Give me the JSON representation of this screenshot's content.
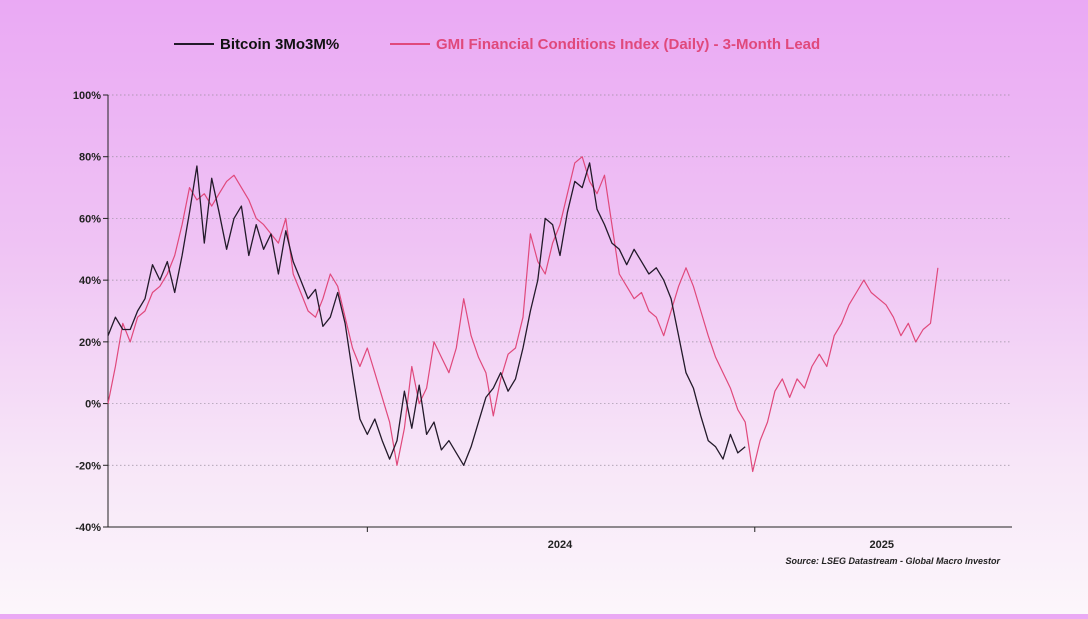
{
  "chart_data": {
    "type": "line",
    "title": "",
    "xlabel": "",
    "ylabel": "",
    "ylim": [
      -40,
      100
    ],
    "yticks": [
      "100%",
      "80%",
      "60%",
      "40%",
      "20%",
      "0%",
      "-20%",
      "-40%"
    ],
    "ytick_values": [
      100,
      80,
      60,
      40,
      20,
      0,
      -20,
      -40
    ],
    "xticks": [
      "2024",
      "2025"
    ],
    "xlim": [
      "2023-05-01",
      "2025-09-01"
    ],
    "grid": "horizontal dotted",
    "legend_position": "top-center",
    "source": "Source: LSEG Datastream - Global Macro Investor",
    "series": [
      {
        "name": "Bitcoin 3Mo3M%",
        "color": "#231a2a",
        "points": [
          [
            "2023-05-01",
            22
          ],
          [
            "2023-05-08",
            28
          ],
          [
            "2023-05-15",
            24
          ],
          [
            "2023-05-22",
            24
          ],
          [
            "2023-05-29",
            30
          ],
          [
            "2023-06-05",
            34
          ],
          [
            "2023-06-12",
            45
          ],
          [
            "2023-06-19",
            40
          ],
          [
            "2023-06-26",
            46
          ],
          [
            "2023-07-03",
            36
          ],
          [
            "2023-07-10",
            48
          ],
          [
            "2023-07-17",
            62
          ],
          [
            "2023-07-24",
            77
          ],
          [
            "2023-07-31",
            52
          ],
          [
            "2023-08-07",
            73
          ],
          [
            "2023-08-14",
            62
          ],
          [
            "2023-08-21",
            50
          ],
          [
            "2023-08-28",
            60
          ],
          [
            "2023-09-04",
            64
          ],
          [
            "2023-09-11",
            48
          ],
          [
            "2023-09-18",
            58
          ],
          [
            "2023-09-25",
            50
          ],
          [
            "2023-10-02",
            55
          ],
          [
            "2023-10-09",
            42
          ],
          [
            "2023-10-16",
            56
          ],
          [
            "2023-10-23",
            46
          ],
          [
            "2023-10-30",
            40
          ],
          [
            "2023-11-06",
            34
          ],
          [
            "2023-11-13",
            37
          ],
          [
            "2023-11-20",
            25
          ],
          [
            "2023-11-27",
            28
          ],
          [
            "2023-12-04",
            36
          ],
          [
            "2023-12-11",
            26
          ],
          [
            "2023-12-18",
            10
          ],
          [
            "2023-12-25",
            -5
          ],
          [
            "2024-01-01",
            -10
          ],
          [
            "2024-01-08",
            -5
          ],
          [
            "2024-01-15",
            -12
          ],
          [
            "2024-01-22",
            -18
          ],
          [
            "2024-01-29",
            -12
          ],
          [
            "2024-02-05",
            4
          ],
          [
            "2024-02-12",
            -8
          ],
          [
            "2024-02-19",
            6
          ],
          [
            "2024-02-26",
            -10
          ],
          [
            "2024-03-04",
            -6
          ],
          [
            "2024-03-11",
            -15
          ],
          [
            "2024-03-18",
            -12
          ],
          [
            "2024-03-25",
            -16
          ],
          [
            "2024-04-01",
            -20
          ],
          [
            "2024-04-08",
            -14
          ],
          [
            "2024-04-15",
            -6
          ],
          [
            "2024-04-22",
            2
          ],
          [
            "2024-04-29",
            5
          ],
          [
            "2024-05-06",
            10
          ],
          [
            "2024-05-13",
            4
          ],
          [
            "2024-05-20",
            8
          ],
          [
            "2024-05-27",
            18
          ],
          [
            "2024-06-03",
            30
          ],
          [
            "2024-06-10",
            40
          ],
          [
            "2024-06-17",
            60
          ],
          [
            "2024-06-24",
            58
          ],
          [
            "2024-07-01",
            48
          ],
          [
            "2024-07-08",
            62
          ],
          [
            "2024-07-15",
            72
          ],
          [
            "2024-07-22",
            70
          ],
          [
            "2024-07-29",
            78
          ],
          [
            "2024-08-05",
            63
          ],
          [
            "2024-08-12",
            58
          ],
          [
            "2024-08-19",
            52
          ],
          [
            "2024-08-26",
            50
          ],
          [
            "2024-09-02",
            45
          ],
          [
            "2024-09-09",
            50
          ],
          [
            "2024-09-16",
            46
          ],
          [
            "2024-09-23",
            42
          ],
          [
            "2024-09-30",
            44
          ],
          [
            "2024-10-07",
            40
          ],
          [
            "2024-10-14",
            34
          ],
          [
            "2024-10-21",
            22
          ],
          [
            "2024-10-28",
            10
          ],
          [
            "2024-11-04",
            5
          ],
          [
            "2024-11-11",
            -4
          ],
          [
            "2024-11-18",
            -12
          ],
          [
            "2024-11-25",
            -14
          ],
          [
            "2024-12-02",
            -18
          ],
          [
            "2024-12-09",
            -10
          ],
          [
            "2024-12-16",
            -16
          ],
          [
            "2024-12-23",
            -14
          ]
        ]
      },
      {
        "name": "GMI Financial Conditions Index (Daily) - 3-Month Lead",
        "color": "#e0497c",
        "points": [
          [
            "2023-05-01",
            0
          ],
          [
            "2023-05-08",
            12
          ],
          [
            "2023-05-15",
            26
          ],
          [
            "2023-05-22",
            20
          ],
          [
            "2023-05-29",
            28
          ],
          [
            "2023-06-05",
            30
          ],
          [
            "2023-06-12",
            36
          ],
          [
            "2023-06-19",
            38
          ],
          [
            "2023-06-26",
            42
          ],
          [
            "2023-07-03",
            48
          ],
          [
            "2023-07-10",
            58
          ],
          [
            "2023-07-17",
            70
          ],
          [
            "2023-07-24",
            66
          ],
          [
            "2023-07-31",
            68
          ],
          [
            "2023-08-07",
            64
          ],
          [
            "2023-08-14",
            68
          ],
          [
            "2023-08-21",
            72
          ],
          [
            "2023-08-28",
            74
          ],
          [
            "2023-09-04",
            70
          ],
          [
            "2023-09-11",
            66
          ],
          [
            "2023-09-18",
            60
          ],
          [
            "2023-09-25",
            58
          ],
          [
            "2023-10-02",
            55
          ],
          [
            "2023-10-09",
            52
          ],
          [
            "2023-10-16",
            60
          ],
          [
            "2023-10-23",
            42
          ],
          [
            "2023-10-30",
            36
          ],
          [
            "2023-11-06",
            30
          ],
          [
            "2023-11-13",
            28
          ],
          [
            "2023-11-20",
            34
          ],
          [
            "2023-11-27",
            42
          ],
          [
            "2023-12-04",
            38
          ],
          [
            "2023-12-11",
            28
          ],
          [
            "2023-12-18",
            18
          ],
          [
            "2023-12-25",
            12
          ],
          [
            "2024-01-01",
            18
          ],
          [
            "2024-01-08",
            10
          ],
          [
            "2024-01-15",
            2
          ],
          [
            "2024-01-22",
            -6
          ],
          [
            "2024-01-29",
            -20
          ],
          [
            "2024-02-05",
            -8
          ],
          [
            "2024-02-12",
            12
          ],
          [
            "2024-02-19",
            0
          ],
          [
            "2024-02-26",
            5
          ],
          [
            "2024-03-04",
            20
          ],
          [
            "2024-03-11",
            15
          ],
          [
            "2024-03-18",
            10
          ],
          [
            "2024-03-25",
            18
          ],
          [
            "2024-04-01",
            34
          ],
          [
            "2024-04-08",
            22
          ],
          [
            "2024-04-15",
            15
          ],
          [
            "2024-04-22",
            10
          ],
          [
            "2024-04-29",
            -4
          ],
          [
            "2024-05-06",
            8
          ],
          [
            "2024-05-13",
            16
          ],
          [
            "2024-05-20",
            18
          ],
          [
            "2024-05-27",
            28
          ],
          [
            "2024-06-03",
            55
          ],
          [
            "2024-06-10",
            46
          ],
          [
            "2024-06-17",
            42
          ],
          [
            "2024-06-24",
            52
          ],
          [
            "2024-07-01",
            58
          ],
          [
            "2024-07-08",
            68
          ],
          [
            "2024-07-15",
            78
          ],
          [
            "2024-07-22",
            80
          ],
          [
            "2024-07-29",
            72
          ],
          [
            "2024-08-05",
            68
          ],
          [
            "2024-08-12",
            74
          ],
          [
            "2024-08-19",
            58
          ],
          [
            "2024-08-26",
            42
          ],
          [
            "2024-09-02",
            38
          ],
          [
            "2024-09-09",
            34
          ],
          [
            "2024-09-16",
            36
          ],
          [
            "2024-09-23",
            30
          ],
          [
            "2024-09-30",
            28
          ],
          [
            "2024-10-07",
            22
          ],
          [
            "2024-10-14",
            30
          ],
          [
            "2024-10-21",
            38
          ],
          [
            "2024-10-28",
            44
          ],
          [
            "2024-11-04",
            38
          ],
          [
            "2024-11-11",
            30
          ],
          [
            "2024-11-18",
            22
          ],
          [
            "2024-11-25",
            15
          ],
          [
            "2024-12-02",
            10
          ],
          [
            "2024-12-09",
            5
          ],
          [
            "2024-12-16",
            -2
          ],
          [
            "2024-12-23",
            -6
          ],
          [
            "2024-12-30",
            -22
          ],
          [
            "2025-01-06",
            -12
          ],
          [
            "2025-01-13",
            -6
          ],
          [
            "2025-01-20",
            4
          ],
          [
            "2025-01-27",
            8
          ],
          [
            "2025-02-03",
            2
          ],
          [
            "2025-02-10",
            8
          ],
          [
            "2025-02-17",
            5
          ],
          [
            "2025-02-24",
            12
          ],
          [
            "2025-03-03",
            16
          ],
          [
            "2025-03-10",
            12
          ],
          [
            "2025-03-17",
            22
          ],
          [
            "2025-03-24",
            26
          ],
          [
            "2025-03-31",
            32
          ],
          [
            "2025-04-07",
            36
          ],
          [
            "2025-04-14",
            40
          ],
          [
            "2025-04-21",
            36
          ],
          [
            "2025-04-28",
            34
          ],
          [
            "2025-05-05",
            32
          ],
          [
            "2025-05-12",
            28
          ],
          [
            "2025-05-19",
            22
          ],
          [
            "2025-05-26",
            26
          ],
          [
            "2025-06-02",
            20
          ],
          [
            "2025-06-09",
            24
          ],
          [
            "2025-06-16",
            26
          ],
          [
            "2025-06-23",
            44
          ]
        ]
      }
    ]
  }
}
